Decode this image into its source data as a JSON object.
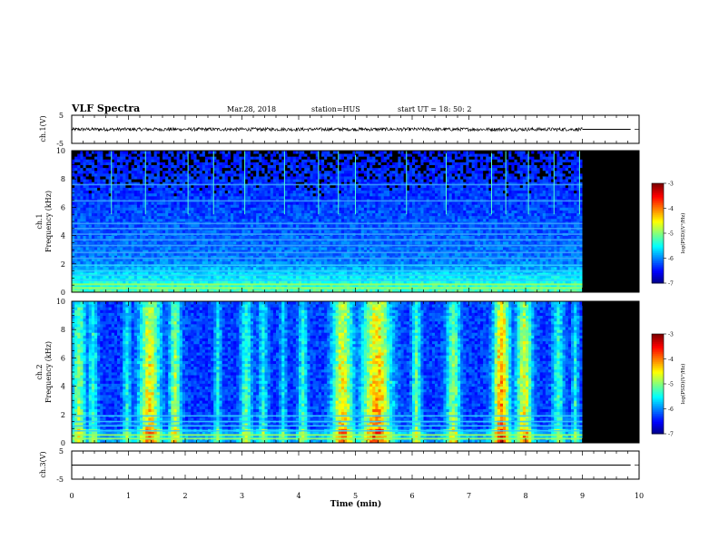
{
  "header": {
    "title": "VLF Spectra",
    "date": "Mar.28, 2018",
    "station": "station=HUS",
    "start": "start  UT =   18: 50: 2"
  },
  "chart_data": [
    {
      "type": "line",
      "panel": "ch1-waveform",
      "ylabel": "ch.1(V)",
      "ylim": [
        -5,
        5
      ],
      "yticks": [
        "5",
        "-5"
      ],
      "xlim": [
        0,
        10
      ],
      "data_end_min": 9.0,
      "baseline": 0,
      "noise_amplitude_v": 0.6
    },
    {
      "type": "heatmap",
      "panel": "ch1-spectrogram",
      "ylabel_top": "ch.1",
      "ylabel": "Frequency  (kHz)",
      "ylim": [
        0,
        10
      ],
      "yticks": [
        "0",
        "2",
        "4",
        "6",
        "8",
        "10"
      ],
      "xlim": [
        0,
        10
      ],
      "data_end_min": 9.0,
      "fill_after_end": "#000000",
      "colorbar": {
        "label": "log(PSD)(V²/Hz)",
        "ticks": [
          "-3",
          "-4",
          "-5",
          "-6",
          "-7"
        ],
        "range": [
          -7,
          -3
        ]
      },
      "harmonic_lines_khz": [
        0.3,
        0.55,
        0.85,
        1.2,
        1.5,
        1.9,
        2.4,
        2.8,
        3.3,
        3.7,
        4.1,
        4.5,
        4.85,
        6.45,
        7.6
      ],
      "spikes_min": [
        0.7,
        1.3,
        2.05,
        2.5,
        3.05,
        3.75,
        4.35,
        4.7,
        5.0,
        5.9,
        6.6,
        7.4,
        7.65,
        8.05,
        8.5,
        8.95
      ]
    },
    {
      "type": "heatmap",
      "panel": "ch2-spectrogram",
      "ylabel_top": "ch.2",
      "ylabel": "Frequency  (kHz)",
      "ylim": [
        0,
        10
      ],
      "yticks": [
        "0",
        "2",
        "4",
        "6",
        "8",
        "10"
      ],
      "xlim": [
        0,
        10
      ],
      "data_end_min": 9.0,
      "fill_after_end": "#000000",
      "colorbar": {
        "label": "log(PSD)(V²/Hz)",
        "ticks": [
          "-3",
          "-4",
          "-5",
          "-6",
          "-7"
        ],
        "range": [
          -7,
          -3
        ]
      },
      "bursts_min": [
        {
          "t": 0.1,
          "w": 0.12,
          "amp": 0.55
        },
        {
          "t": 0.35,
          "w": 0.08,
          "amp": 0.4
        },
        {
          "t": 0.95,
          "w": 0.07,
          "amp": 0.35
        },
        {
          "t": 1.35,
          "w": 0.18,
          "amp": 0.75
        },
        {
          "t": 1.8,
          "w": 0.1,
          "amp": 0.6
        },
        {
          "t": 2.55,
          "w": 0.06,
          "amp": 0.35
        },
        {
          "t": 3.05,
          "w": 0.1,
          "amp": 0.45
        },
        {
          "t": 3.35,
          "w": 0.08,
          "amp": 0.35
        },
        {
          "t": 3.7,
          "w": 0.06,
          "amp": 0.3
        },
        {
          "t": 4.05,
          "w": 0.08,
          "amp": 0.4
        },
        {
          "t": 4.75,
          "w": 0.18,
          "amp": 0.75
        },
        {
          "t": 5.35,
          "w": 0.25,
          "amp": 0.85
        },
        {
          "t": 6.05,
          "w": 0.08,
          "amp": 0.5
        },
        {
          "t": 6.7,
          "w": 0.12,
          "amp": 0.55
        },
        {
          "t": 7.55,
          "w": 0.14,
          "amp": 0.9
        },
        {
          "t": 7.95,
          "w": 0.14,
          "amp": 0.7
        },
        {
          "t": 8.55,
          "w": 0.1,
          "amp": 0.4
        },
        {
          "t": 8.85,
          "w": 0.06,
          "amp": 0.35
        }
      ],
      "harmonic_lines_khz": [
        0.3,
        0.55,
        0.85,
        1.2,
        1.5,
        1.9
      ]
    },
    {
      "type": "line",
      "panel": "ch3-waveform",
      "ylabel": "ch.3(V)",
      "ylim": [
        -5,
        5
      ],
      "yticks": [
        "5",
        "-5"
      ],
      "xlim": [
        0,
        10
      ],
      "xlabel": "Time  (min)",
      "xticks": [
        "0",
        "1",
        "2",
        "3",
        "4",
        "5",
        "6",
        "7",
        "8",
        "9",
        "10"
      ],
      "baseline": 0
    }
  ]
}
